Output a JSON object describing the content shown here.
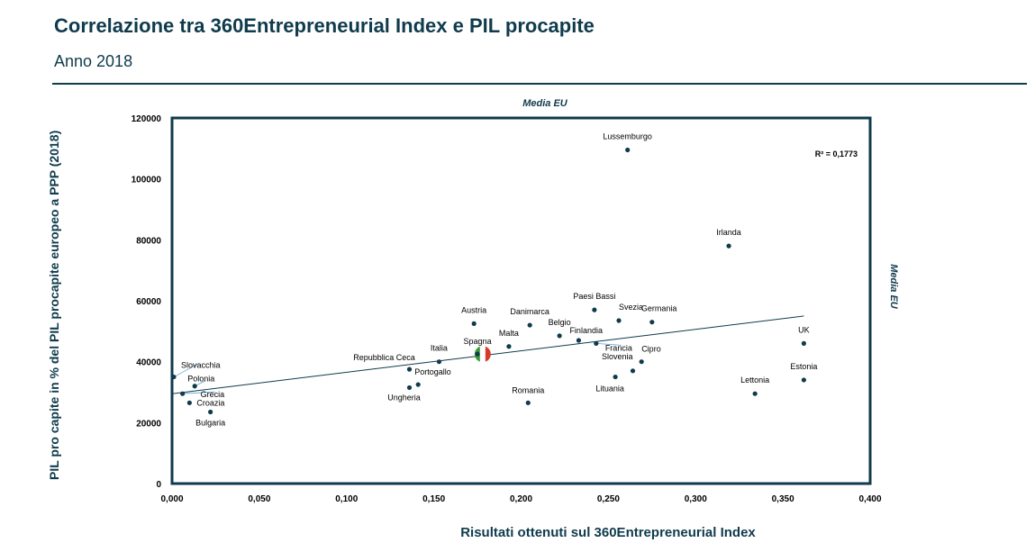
{
  "header": {
    "title": "Correlazione tra 360Entrepreneurial Index e PIL procapite",
    "subtitle": "Anno 2018"
  },
  "chart_data": {
    "type": "scatter",
    "xlabel": "Risultati ottenuti sul 360Entrepreneurial Index",
    "ylabel": "PIL pro capite in % del PIL procapite europeo a PPP (2018)",
    "xlim": [
      0,
      0.4
    ],
    "ylim": [
      0,
      120000
    ],
    "x_ticks": [
      "0,000",
      "0,050",
      "0,100",
      "0,150",
      "0,200",
      "0,250",
      "0,300",
      "0,350",
      "0,400"
    ],
    "y_ticks": [
      "0",
      "20000",
      "40000",
      "60000",
      "80000",
      "100000",
      "120000"
    ],
    "grid": false,
    "annotation_r2": "R² = 0,1773",
    "media_eu_label_top": "Media EU",
    "media_eu_label_right": "Media EU",
    "trendline": {
      "x": [
        0,
        0.362
      ],
      "y": [
        29500,
        55000
      ]
    },
    "points": [
      {
        "name": "Lussemburgo",
        "x": 0.261,
        "y": 109500
      },
      {
        "name": "Irlanda",
        "x": 0.319,
        "y": 78000
      },
      {
        "name": "Paesi Bassi",
        "x": 0.242,
        "y": 57000
      },
      {
        "name": "Svezia",
        "x": 0.256,
        "y": 53500
      },
      {
        "name": "Germania",
        "x": 0.275,
        "y": 53000
      },
      {
        "name": "Austria",
        "x": 0.173,
        "y": 52500
      },
      {
        "name": "Danimarca",
        "x": 0.205,
        "y": 52000
      },
      {
        "name": "Belgio",
        "x": 0.222,
        "y": 48500
      },
      {
        "name": "Finlandia",
        "x": 0.233,
        "y": 47000
      },
      {
        "name": "Francia",
        "x": 0.243,
        "y": 46000
      },
      {
        "name": "Malta",
        "x": 0.193,
        "y": 45000
      },
      {
        "name": "UK",
        "x": 0.362,
        "y": 46000
      },
      {
        "name": "Spagna",
        "x": 0.175,
        "y": 42500
      },
      {
        "name": "Italia",
        "x": 0.153,
        "y": 40000
      },
      {
        "name": "Cipro",
        "x": 0.269,
        "y": 40000
      },
      {
        "name": "Repubblica Ceca",
        "x": 0.136,
        "y": 37500
      },
      {
        "name": "Slovenia",
        "x": 0.264,
        "y": 37000
      },
      {
        "name": "Lituania",
        "x": 0.254,
        "y": 35000
      },
      {
        "name": "Slovacchia",
        "x": 0.001,
        "y": 35000
      },
      {
        "name": "Estonia",
        "x": 0.362,
        "y": 34000
      },
      {
        "name": "Portogallo",
        "x": 0.141,
        "y": 32500
      },
      {
        "name": "Ungheria",
        "x": 0.136,
        "y": 31500
      },
      {
        "name": "Polonia",
        "x": 0.013,
        "y": 32000
      },
      {
        "name": "Lettonia",
        "x": 0.334,
        "y": 29500
      },
      {
        "name": "Grecia",
        "x": 0.006,
        "y": 29500
      },
      {
        "name": "Croazia",
        "x": 0.01,
        "y": 26500
      },
      {
        "name": "Romania",
        "x": 0.204,
        "y": 26500
      },
      {
        "name": "Bulgaria",
        "x": 0.022,
        "y": 23500
      }
    ],
    "highlight": {
      "name": "Italia (flag)",
      "x": 0.178,
      "y": 42500,
      "colors": [
        "#3a9a3a",
        "#ffffff",
        "#d83a2a"
      ]
    },
    "colors": {
      "marker": "#0f3b4c",
      "frame": "#0f3b4c",
      "trend": "#0f3b4c"
    }
  }
}
